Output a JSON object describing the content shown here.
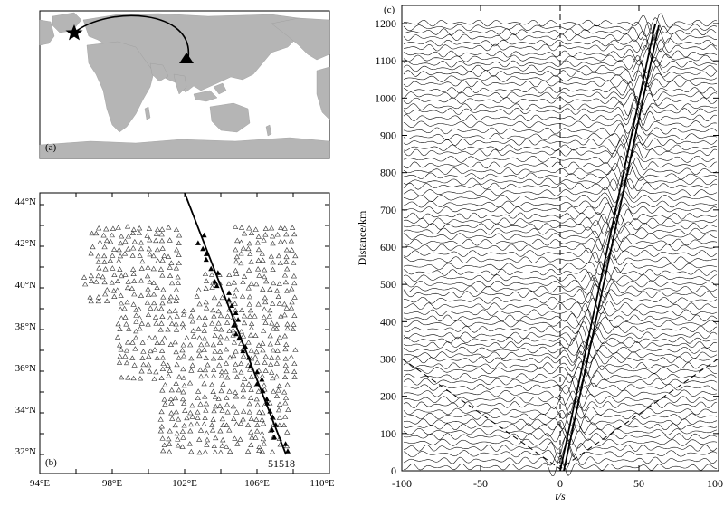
{
  "panel_a": {
    "label": "(a)",
    "source_marker": "star-icon",
    "receiver_marker": "triangle-filled-icon"
  },
  "panel_b": {
    "label": "(b)",
    "station_id": "51518",
    "x_ticks": [
      "94°E",
      "98°E",
      "102°E",
      "106°E",
      "110°E"
    ],
    "y_ticks": [
      "32°N",
      "34°N",
      "36°N",
      "38°N",
      "40°N",
      "42°N",
      "44°N"
    ],
    "x_range": [
      94,
      110
    ],
    "y_range": [
      31,
      44
    ],
    "open_station_marker": "triangle-open-icon",
    "profile_station_marker": "triangle-filled-icon"
  },
  "panel_c": {
    "label": "(c)",
    "ylabel": "Distance/km",
    "xlabel": "t/s",
    "x_ticks": [
      "-100",
      "-50",
      "0",
      "50",
      "100"
    ],
    "y_ticks": [
      "0",
      "100",
      "200",
      "300",
      "400",
      "500",
      "600",
      "700",
      "800",
      "900",
      "1000",
      "1100",
      "1200"
    ],
    "x_range": [
      -100,
      100
    ],
    "y_range": [
      0,
      1250
    ]
  },
  "colors": {
    "land": "#b5b5b5",
    "ocean": "#ffffff",
    "frame": "#000000"
  }
}
